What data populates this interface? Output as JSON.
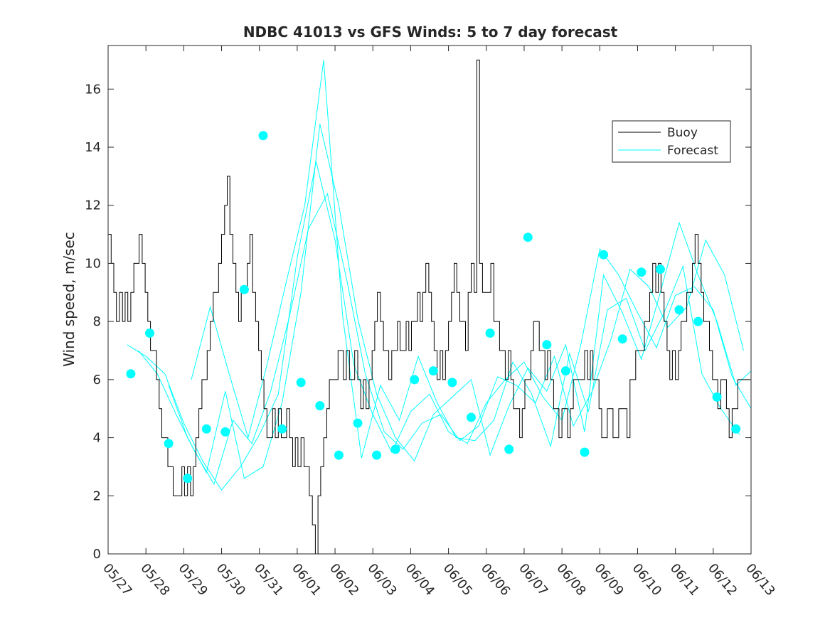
{
  "chart_data": {
    "type": "line",
    "title": "NDBC 41013 vs GFS Winds: 5 to 7 day forecast",
    "xlabel": "",
    "ylabel": "Wind speed, m/sec",
    "x_unit": "days from 05/27",
    "xlim": [
      0,
      17
    ],
    "ylim": [
      0,
      17.5
    ],
    "x_ticks": [
      "05/27",
      "05/28",
      "05/29",
      "05/30",
      "05/31",
      "06/01",
      "06/02",
      "06/03",
      "06/04",
      "06/05",
      "06/06",
      "06/07",
      "06/08",
      "06/09",
      "06/10",
      "06/11",
      "06/12",
      "06/13"
    ],
    "y_ticks": [
      0,
      2,
      4,
      6,
      8,
      10,
      12,
      14,
      16
    ],
    "legend": {
      "placement": "top-right",
      "entries": [
        "Buoy",
        "Forecast"
      ]
    },
    "colors": {
      "buoy": "#000000",
      "forecast": "#00ffff",
      "axes": "#262626"
    },
    "buoy": {
      "x": [
        0,
        0.08,
        0.15,
        0.22,
        0.3,
        0.38,
        0.45,
        0.52,
        0.6,
        0.68,
        0.75,
        0.82,
        0.9,
        0.98,
        1.05,
        1.12,
        1.2,
        1.28,
        1.35,
        1.42,
        1.5,
        1.58,
        1.65,
        1.72,
        1.8,
        1.88,
        1.95,
        2.02,
        2.1,
        2.18,
        2.25,
        2.32,
        2.4,
        2.48,
        2.55,
        2.62,
        2.7,
        2.78,
        2.85,
        2.92,
        3.0,
        3.08,
        3.15,
        3.22,
        3.3,
        3.38,
        3.45,
        3.52,
        3.6,
        3.68,
        3.75,
        3.82,
        3.9,
        3.98,
        4.05,
        4.12,
        4.2,
        4.28,
        4.35,
        4.42,
        4.5,
        4.58,
        4.65,
        4.72,
        4.8,
        4.88,
        4.95,
        5.02,
        5.1,
        5.18,
        5.25,
        5.32,
        5.4,
        5.48,
        5.55,
        5.62,
        5.7,
        5.78,
        5.85,
        5.92,
        6.0,
        6.08,
        6.15,
        6.22,
        6.3,
        6.38,
        6.45,
        6.52,
        6.6,
        6.68,
        6.75,
        6.82,
        6.9,
        6.98,
        7.05,
        7.12,
        7.2,
        7.28,
        7.35,
        7.42,
        7.5,
        7.58,
        7.65,
        7.72,
        7.8,
        7.88,
        7.95,
        8.02,
        8.1,
        8.18,
        8.25,
        8.32,
        8.4,
        8.48,
        8.55,
        8.62,
        8.7,
        8.78,
        8.85,
        8.92,
        9.0,
        9.08,
        9.15,
        9.22,
        9.3,
        9.38,
        9.45,
        9.52,
        9.6,
        9.68,
        9.75,
        9.82,
        9.9,
        9.98,
        10.05,
        10.12,
        10.2,
        10.28,
        10.35,
        10.42,
        10.5,
        10.58,
        10.65,
        10.72,
        10.8,
        10.88,
        10.95,
        11.02,
        11.1,
        11.18,
        11.25,
        11.32,
        11.4,
        11.48,
        11.55,
        11.62,
        11.7,
        11.78,
        11.85,
        11.92,
        12.0,
        12.08,
        12.15,
        12.22,
        12.3,
        12.38,
        12.45,
        12.52,
        12.6,
        12.68,
        12.75,
        12.82,
        12.9,
        12.98,
        13.05,
        13.12,
        13.2,
        13.28,
        13.35,
        13.42,
        13.5,
        13.58,
        13.65,
        13.72,
        13.8,
        13.88,
        13.95,
        14.02,
        14.1,
        14.18,
        14.25,
        14.32,
        14.4,
        14.48,
        14.55,
        14.62,
        14.7,
        14.78,
        14.85,
        14.92,
        15.0,
        15.08,
        15.15,
        15.22,
        15.3,
        15.38,
        15.45,
        15.52,
        15.6,
        15.68,
        15.75,
        15.82,
        15.9,
        15.98,
        16.05,
        16.12,
        16.2,
        16.28,
        16.35,
        16.42,
        16.5,
        16.58,
        16.65,
        16.72,
        16.8,
        16.88,
        16.95
      ],
      "y": [
        11,
        10,
        9,
        8,
        9,
        8,
        9,
        8,
        9,
        10,
        10,
        11,
        10,
        9,
        8,
        7,
        7,
        6,
        5,
        4,
        4,
        3,
        3,
        2,
        2,
        2,
        3,
        2,
        3,
        2,
        3,
        4,
        5,
        6,
        6,
        7,
        8,
        9,
        9,
        10,
        11,
        12,
        13,
        11,
        10,
        9,
        8,
        9,
        9,
        10,
        11,
        9,
        8,
        7,
        6,
        5,
        4,
        4,
        5,
        4,
        5,
        4,
        4,
        5,
        4,
        3,
        4,
        3,
        4,
        3,
        3,
        2,
        1,
        0,
        2,
        3,
        4,
        5,
        6,
        6,
        6,
        7,
        7,
        6,
        7,
        6,
        6,
        7,
        6,
        5,
        6,
        5,
        6,
        7,
        8,
        9,
        8,
        7,
        7,
        6,
        7,
        7,
        8,
        7,
        7,
        8,
        7,
        8,
        8,
        9,
        8,
        9,
        10,
        9,
        8,
        7,
        6,
        7,
        6,
        7,
        8,
        9,
        10,
        9,
        8,
        8,
        7,
        9,
        10,
        9,
        17,
        10,
        9,
        9,
        9,
        10,
        8,
        8,
        7,
        7,
        6,
        7,
        6,
        5,
        5,
        4,
        5,
        6,
        6,
        7,
        8,
        8,
        7,
        7,
        6,
        7,
        6,
        5,
        5,
        4,
        5,
        5,
        4,
        5,
        6,
        6,
        6,
        6,
        7,
        6,
        7,
        6,
        6,
        5,
        4,
        4,
        5,
        5,
        4,
        4,
        5,
        5,
        5,
        4,
        6,
        6,
        7,
        7,
        7,
        8,
        8,
        9,
        10,
        9,
        10,
        9,
        8,
        7,
        6,
        7,
        6,
        7,
        8,
        8,
        9,
        9,
        10,
        11,
        10,
        9,
        8,
        8,
        7,
        6,
        6,
        5,
        6,
        6,
        5,
        4,
        5,
        5,
        6,
        6,
        6,
        6,
        6
      ]
    },
    "forecast_lines": [
      {
        "x": [
          0.5,
          1,
          1.5,
          2,
          2.5,
          3,
          3.5,
          4,
          4.5,
          5,
          5.5,
          6,
          6.5,
          7,
          7.5,
          8,
          8.5,
          9,
          9.5,
          10,
          10.5,
          11,
          11.5,
          12,
          12.5,
          13,
          13.5,
          14,
          14.5,
          15,
          15.5,
          16,
          16.5,
          17
        ],
        "y": [
          7.2,
          6.8,
          6.2,
          4.5,
          3.2,
          2.2,
          3.0,
          4.1,
          5.5,
          10.2,
          13.5,
          10.8,
          6.5,
          4.8,
          3.5,
          4.9,
          5.5,
          4.2,
          3.8,
          5.2,
          6.0,
          6.6,
          5.4,
          4.6,
          7.2,
          10.5,
          9.6,
          8.3,
          7.1,
          8.9,
          9.2,
          8.4,
          6.1,
          5.0
        ]
      },
      {
        "x": [
          0.8,
          1.3,
          1.8,
          2.3,
          2.8,
          3.3,
          3.8,
          4.3,
          4.8,
          5.3,
          5.8,
          6.3,
          6.8,
          7.3,
          7.8,
          8.3,
          8.8,
          9.3,
          9.8,
          10.3,
          10.8,
          11.3,
          11.8,
          12.3,
          12.8,
          13.3,
          13.8,
          14.3,
          14.8,
          15.3,
          15.8,
          16.3,
          16.8
        ],
        "y": [
          7.0,
          6.2,
          4.8,
          3.5,
          2.4,
          4.6,
          3.8,
          5.6,
          8.2,
          11.2,
          12.4,
          9.5,
          6.2,
          4.2,
          3.6,
          4.5,
          4.8,
          3.9,
          4.4,
          6.1,
          5.8,
          5.2,
          6.8,
          4.4,
          5.6,
          7.4,
          9.8,
          9.2,
          7.8,
          8.5,
          10.8,
          9.6,
          7.0
        ]
      },
      {
        "x": [
          1.6,
          2.1,
          2.6,
          3.1,
          3.6,
          4.1,
          4.6,
          5.1,
          5.6,
          6.1,
          6.6,
          7.1,
          7.6,
          8.1,
          8.6,
          9.1,
          9.6,
          10.1,
          10.6,
          11.1,
          11.6,
          12.1,
          12.6,
          13.1,
          13.6,
          14.1,
          14.6,
          15.1,
          15.6,
          16.1,
          16.6,
          17.0
        ],
        "y": [
          5.8,
          4.0,
          2.8,
          5.6,
          2.6,
          3.0,
          5.2,
          9.0,
          14.8,
          12.0,
          8.1,
          5.5,
          4.0,
          3.2,
          4.8,
          5.4,
          6.0,
          3.4,
          5.1,
          6.4,
          5.6,
          7.2,
          4.2,
          9.6,
          8.3,
          6.7,
          9.0,
          11.4,
          9.6,
          8.0,
          5.8,
          6.3
        ]
      },
      {
        "x": [
          2.2,
          2.7,
          3.2,
          3.7,
          4.2,
          4.7,
          5.2,
          5.7,
          6.2,
          6.7,
          7.2,
          7.7,
          8.2,
          8.7,
          9.2,
          9.7,
          10.2,
          10.7,
          11.2,
          11.7,
          12.2,
          12.7,
          13.2,
          13.7,
          14.2,
          14.7,
          15.2,
          15.7,
          16.2,
          16.7
        ],
        "y": [
          6.0,
          8.5,
          6.2,
          4.0,
          6.5,
          9.3,
          12.0,
          17.0,
          8.2,
          3.3,
          5.8,
          4.6,
          6.8,
          5.2,
          4.0,
          3.9,
          4.6,
          6.6,
          5.5,
          3.7,
          6.9,
          4.9,
          8.4,
          8.8,
          7.0,
          8.3,
          9.9,
          6.2,
          5.0,
          4.1
        ]
      }
    ],
    "forecast_points": {
      "x": [
        0.6,
        1.1,
        1.6,
        2.1,
        2.6,
        3.1,
        3.6,
        4.1,
        4.6,
        5.1,
        5.6,
        6.1,
        6.6,
        7.1,
        7.6,
        8.1,
        8.6,
        9.1,
        9.6,
        10.1,
        10.6,
        11.1,
        11.6,
        12.1,
        12.6,
        13.1,
        13.6,
        14.1,
        14.6,
        15.1,
        15.6,
        16.1,
        16.6
      ],
      "y": [
        6.2,
        7.6,
        3.8,
        2.6,
        4.3,
        4.2,
        9.1,
        14.4,
        4.3,
        5.9,
        5.1,
        3.4,
        4.5,
        3.4,
        3.6,
        6.0,
        6.3,
        5.9,
        4.7,
        7.6,
        3.6,
        10.9,
        7.2,
        6.3,
        3.5,
        10.3,
        7.4,
        9.7,
        9.8,
        8.4,
        8.0,
        5.4,
        4.3
      ]
    }
  }
}
